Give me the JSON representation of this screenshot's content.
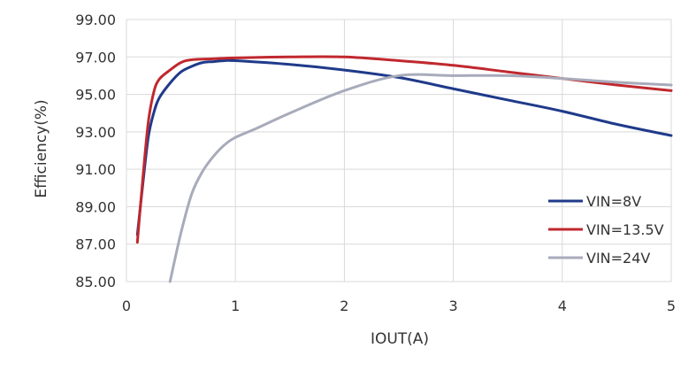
{
  "chart_data": {
    "type": "line",
    "title": "",
    "xlabel": "IOUT(A)",
    "ylabel": "Efficiency(%)",
    "xlim": [
      0,
      5
    ],
    "ylim": [
      85,
      99
    ],
    "x_ticks": [
      "0",
      "1",
      "2",
      "3",
      "4",
      "5"
    ],
    "y_ticks": [
      "85.00",
      "87.00",
      "89.00",
      "91.00",
      "93.00",
      "95.00",
      "97.00",
      "99.00"
    ],
    "grid": true,
    "legend_position": "lower-right",
    "series": [
      {
        "name": "VIN=8V",
        "color": "#1F3A8A",
        "points": [
          [
            0.1,
            87.5
          ],
          [
            0.15,
            90.2
          ],
          [
            0.2,
            92.7
          ],
          [
            0.25,
            94.0
          ],
          [
            0.3,
            94.8
          ],
          [
            0.4,
            95.6
          ],
          [
            0.5,
            96.2
          ],
          [
            0.6,
            96.5
          ],
          [
            0.7,
            96.7
          ],
          [
            0.8,
            96.75
          ],
          [
            0.9,
            96.8
          ],
          [
            1.0,
            96.8
          ],
          [
            1.5,
            96.6
          ],
          [
            2.0,
            96.3
          ],
          [
            2.5,
            95.9
          ],
          [
            3.0,
            95.3
          ],
          [
            3.5,
            94.7
          ],
          [
            4.0,
            94.1
          ],
          [
            4.5,
            93.4
          ],
          [
            5.0,
            92.8
          ]
        ]
      },
      {
        "name": "VIN=13.5V",
        "color": "#C0282E",
        "points": [
          [
            0.1,
            87.1
          ],
          [
            0.15,
            90.5
          ],
          [
            0.2,
            93.5
          ],
          [
            0.25,
            95.1
          ],
          [
            0.3,
            95.8
          ],
          [
            0.4,
            96.3
          ],
          [
            0.5,
            96.7
          ],
          [
            0.6,
            96.85
          ],
          [
            0.8,
            96.9
          ],
          [
            1.0,
            96.95
          ],
          [
            1.5,
            97.0
          ],
          [
            2.0,
            97.0
          ],
          [
            2.5,
            96.8
          ],
          [
            3.0,
            96.55
          ],
          [
            3.5,
            96.2
          ],
          [
            4.0,
            95.85
          ],
          [
            4.5,
            95.5
          ],
          [
            5.0,
            95.2
          ]
        ]
      },
      {
        "name": "VIN=24V",
        "color": "#A8ABBA",
        "points": [
          [
            0.4,
            85.0
          ],
          [
            0.5,
            87.6
          ],
          [
            0.6,
            89.7
          ],
          [
            0.7,
            90.9
          ],
          [
            0.8,
            91.7
          ],
          [
            0.9,
            92.3
          ],
          [
            1.0,
            92.7
          ],
          [
            1.2,
            93.2
          ],
          [
            1.5,
            94.0
          ],
          [
            2.0,
            95.2
          ],
          [
            2.5,
            96.0
          ],
          [
            3.0,
            96.0
          ],
          [
            3.5,
            96.0
          ],
          [
            4.0,
            95.85
          ],
          [
            4.5,
            95.65
          ],
          [
            5.0,
            95.5
          ]
        ]
      }
    ]
  }
}
